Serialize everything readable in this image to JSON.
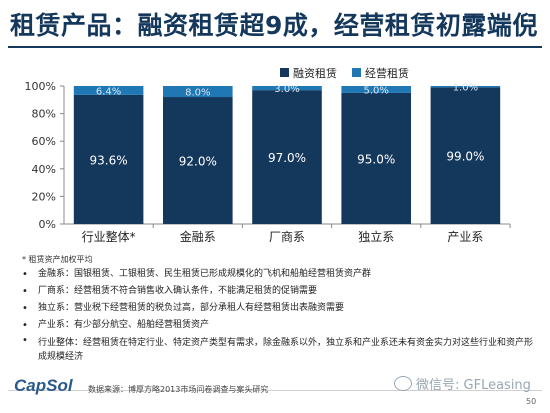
{
  "title": "租赁产品：融资租赁超9成，经营租赁初露端倪",
  "chart_data": {
    "type": "bar",
    "stacked": true,
    "categories": [
      "行业整体*",
      "金融系",
      "厂商系",
      "独立系",
      "产业系"
    ],
    "series": [
      {
        "name": "融资租赁",
        "values": [
          93.6,
          92.0,
          97.0,
          95.0,
          99.0
        ],
        "labels": [
          "93.6%",
          "92.0%",
          "97.0%",
          "95.0%",
          "99.0%"
        ],
        "color": "#14375c"
      },
      {
        "name": "经营租赁",
        "values": [
          6.4,
          8.0,
          3.0,
          5.0,
          1.0
        ],
        "labels": [
          "6.4%",
          "8.0%",
          "3.0%",
          "5.0%",
          "1.0%"
        ],
        "color": "#1f77b4"
      }
    ],
    "yticks": [
      "0%",
      "20%",
      "40%",
      "60%",
      "80%",
      "100%"
    ],
    "ylim": [
      0,
      100
    ],
    "legend": "top-right",
    "grid": false
  },
  "footnote": "* 租赁资产加权平均",
  "bullets": [
    "金融系：国银租赁、工银租赁、民生租赁已形成规模化的飞机和船舶经营租赁资产群",
    "厂商系：经营租赁不符合销售收入确认条件，不能满足租赁的促销需要",
    "独立系：营业税下经营租赁的税负过高，部分承租人有经营租赁出表融资需要",
    "产业系：有少部分航空、船舶经营租赁资产",
    "行业整体：经营租赁在特定行业、特定资产类型有需求，除金融系以外，独立系和产业系还未有资金实力对这些行业和资产形成规模经济"
  ],
  "logo": "CapSol",
  "source": "数据来源：博厚方略2013市场问卷调查与案头研究",
  "watermark": "微信号: GFLeasing",
  "page_number": "50"
}
